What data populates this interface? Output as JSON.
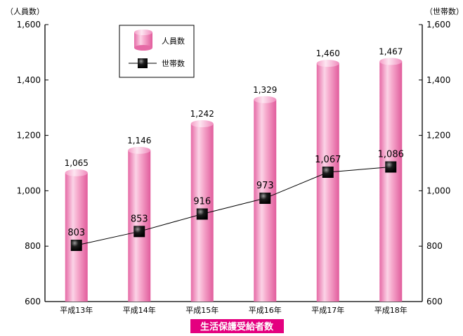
{
  "chart_data": {
    "type": "bar",
    "caption": "生活保護受給者数",
    "categories": [
      "平成13年",
      "平成14年",
      "平成15年",
      "平成16年",
      "平成17年",
      "平成18年"
    ],
    "series": [
      {
        "name": "人員数",
        "type": "bar",
        "axis": "left",
        "values": [
          1065,
          1146,
          1242,
          1329,
          1460,
          1467
        ]
      },
      {
        "name": "世帯数",
        "type": "line",
        "axis": "right",
        "values": [
          803,
          853,
          916,
          973,
          1067,
          1086
        ]
      }
    ],
    "left_axis": {
      "label": "（人員数）",
      "ylim": [
        600,
        1600
      ],
      "ticks": [
        "600",
        "800",
        "1,000",
        "1,200",
        "1,400",
        "1,600"
      ]
    },
    "right_axis": {
      "label": "（世帯数）",
      "ylim": [
        600,
        1600
      ],
      "ticks": [
        "600",
        "800",
        "1,000",
        "1,200",
        "1,400",
        "1,600"
      ]
    },
    "value_labels_bar": [
      "1,065",
      "1,146",
      "1,242",
      "1,329",
      "1,460",
      "1,467"
    ],
    "value_labels_line": [
      "803",
      "853",
      "916",
      "973",
      "1,067",
      "1,086"
    ],
    "legend": {
      "position": "top-left",
      "entries": [
        "人員数",
        "世帯数"
      ]
    },
    "grid": false,
    "colors": {
      "bar": "#f39cc6",
      "bar_highlight": "#fde3ef",
      "line": "#000000",
      "marker": "#000000",
      "caption_bg": "#e4007f"
    }
  }
}
